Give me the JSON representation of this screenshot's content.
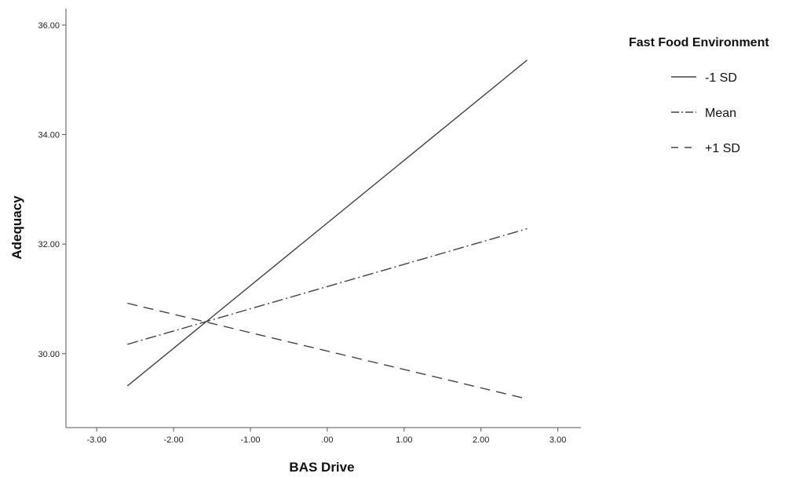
{
  "chart_data": {
    "type": "line",
    "title": "",
    "xlabel": "BAS Drive",
    "ylabel": "Adequacy",
    "xlim": [
      -3.4,
      3.3
    ],
    "ylim": [
      28.65,
      36.3
    ],
    "x_ticks": [
      -3.0,
      -2.0,
      -1.0,
      0.0,
      1.0,
      2.0,
      3.0
    ],
    "x_tick_labels": [
      "-3.00",
      "-2.00",
      "-1.00",
      ".00",
      "1.00",
      "2.00",
      "3.00"
    ],
    "y_ticks": [
      30.0,
      32.0,
      34.0,
      36.0
    ],
    "y_tick_labels": [
      "30.00",
      "32.00",
      "34.00",
      "36.00"
    ],
    "grid": false,
    "legend": {
      "title": "Fast Food Environment",
      "position": "right"
    },
    "series": [
      {
        "name": "-1 SD",
        "style": "solid",
        "color": "#444444",
        "x": [
          -2.6,
          2.6
        ],
        "y": [
          29.41,
          35.36
        ]
      },
      {
        "name": "Mean",
        "style": "dashdot",
        "color": "#444444",
        "x": [
          -2.6,
          2.6
        ],
        "y": [
          30.17,
          32.28
        ]
      },
      {
        "name": "+1 SD",
        "style": "dashed",
        "color": "#444444",
        "x": [
          -2.6,
          2.55
        ],
        "y": [
          30.92,
          29.19
        ]
      }
    ]
  }
}
